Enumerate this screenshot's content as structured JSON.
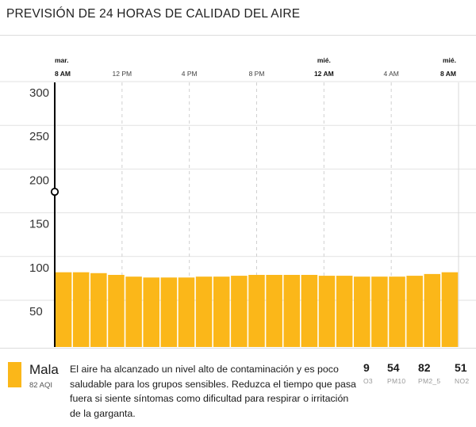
{
  "header": {
    "title": "PREVISIÓN DE 24 HORAS DE CALIDAD DEL AIRE"
  },
  "chart_data": {
    "type": "bar",
    "y_ticks": [
      "300",
      "250",
      "200",
      "150",
      "100",
      "50"
    ],
    "ylim": [
      0,
      300
    ],
    "x_top_labels": [
      {
        "day": "mar.",
        "time": "8 AM",
        "bold": true,
        "hour": 0
      },
      {
        "day": "",
        "time": "12 PM",
        "bold": false,
        "hour": 4
      },
      {
        "day": "",
        "time": "4 PM",
        "bold": false,
        "hour": 8
      },
      {
        "day": "",
        "time": "8 PM",
        "bold": false,
        "hour": 12
      },
      {
        "day": "mié.",
        "time": "12 AM",
        "bold": true,
        "hour": 16
      },
      {
        "day": "",
        "time": "4 AM",
        "bold": false,
        "hour": 20
      },
      {
        "day": "mié.",
        "time": "8 AM",
        "bold": true,
        "hour": 24
      }
    ],
    "values": [
      82,
      82,
      81,
      79,
      77,
      76,
      76,
      76,
      77,
      77,
      78,
      79,
      79,
      79,
      79,
      78,
      78,
      77,
      77,
      77,
      78,
      80,
      82
    ],
    "current_marker_value": 174,
    "bar_color": "#fbb719",
    "grid": true
  },
  "footer": {
    "level": "Mala",
    "aqi_text": "82 AQI",
    "level_color": "#fbb719",
    "description": "El aire ha alcanzado un nivel alto de contaminación y es poco saludable para los grupos sensibles. Reduzca el tiempo que pasa fuera si siente síntomas como dificultad para respirar o irritación de la garganta.",
    "pollutants": [
      {
        "value": "9",
        "name": "O3"
      },
      {
        "value": "54",
        "name": "PM10"
      },
      {
        "value": "82",
        "name": "PM2_5"
      },
      {
        "value": "51",
        "name": "NO2"
      }
    ]
  }
}
